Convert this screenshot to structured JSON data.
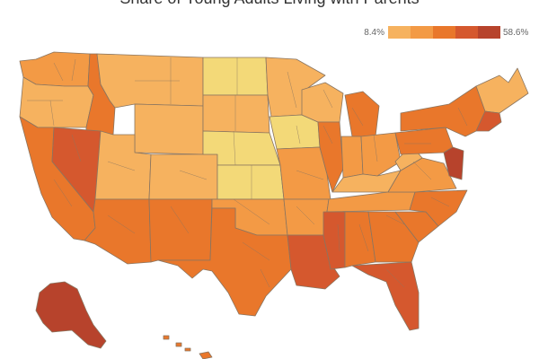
{
  "title": "Share of Young Adults Living with Parents",
  "legend": {
    "min_label": "8.4%",
    "max_label": "58.6%",
    "colors": [
      "#f3d978",
      "#f6b25f",
      "#f39a45",
      "#e9772b",
      "#d5582e",
      "#b7432c"
    ]
  },
  "map": {
    "region": "United States",
    "level": "congressional districts",
    "border_color": "#8a7560"
  }
}
